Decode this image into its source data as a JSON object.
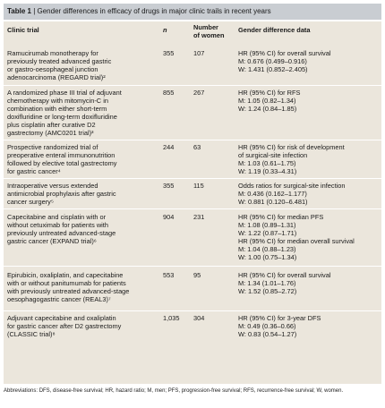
{
  "table": {
    "label": "Table 1",
    "title": " | Gender differences in efficacy of drugs in major clinic trails in recent years",
    "headers": {
      "trial": "Clinic trial",
      "n": "n",
      "women": "Number\nof women",
      "data": "Gender difference data"
    },
    "rows": [
      {
        "trial": "Ramucirumab monotherapy for\npreviously treated advanced gastric\nor gastro-oesophageal junction\nadenocarcinoma (REGARD trial)²",
        "n": "355",
        "women": "107",
        "data": "HR (95% CI) for overall survival\nM: 0.676 (0.499–0.916)\nW: 1.431 (0.852–2.405)"
      },
      {
        "trial": "A randomized phase III trial of adjuvant\nchemotherapy with mitomycin-C in\ncombination with either short-term\ndoxifluridine or long-term doxifluridine\nplus cisplatin after curative D2\ngastrectomy (AMC0201 trial)³",
        "n": "855",
        "women": "267",
        "data": "HR (95% CI) for RFS\nM: 1.05 (0.82–1.34)\nW: 1.24 (0.84–1.85)"
      },
      {
        "trial": "Prospective randomized trial of\npreoperative enteral immunonutrition\nfollowed by elective total gastrectomy\nfor gastric cancer⁴",
        "n": "244",
        "women": "63",
        "data": "HR (95% CI) for risk of development\nof surgical-site infection\nM: 1.03 (0.61–1.75)\nW: 1.19 (0.33–4.31)"
      },
      {
        "trial": "Intraoperative versus extended\nantimicrobial prophylaxis after gastric\ncancer surgery⁵",
        "n": "355",
        "women": "115",
        "data": "Odds ratios for surgical-site infection\nM: 0.436 (0.162–1.177)\nW: 0.881 (0.120–6.481)"
      },
      {
        "trial": "Capecitabine and cisplatin with or\nwithout cetuximab for patients with\npreviously untreated advanced-stage\ngastric cancer (EXPAND trial)⁶",
        "n": "904",
        "women": "231",
        "data": "HR (95% CI) for median PFS\nM: 1.08 (0.89–1.31)\nW: 1.22 (0.87–1.71)\nHR (95% CI) for median overall survival\nM: 1.04 (0.88–1.23)\nW: 1.00 (0.75–1.34)"
      },
      {
        "trial": "Epirubicin, oxaliplatin, and capecitabine\nwith or without panitumumab for patients\nwith previously untreated advanced-stage\noesophagogastric cancer (REAL3)⁷",
        "n": "553",
        "women": "95",
        "data": "HR (95% CI) for overall survival\nM: 1.34 (1.01–1.76)\nW: 1.52 (0.85–2.72)"
      },
      {
        "trial": "Adjuvant capecitabine and oxaliplatin\nfor gastric cancer after D2 gastrectomy\n(CLASSIC trial)⁸",
        "n": "1,035",
        "women": "304",
        "data": "HR (95% CI) for 3-year DFS\nM: 0.49 (0.36–0.66)\nW: 0.83 (0.54–1.27)"
      }
    ],
    "footnote": "Abbreviations: DFS, disease-free survival; HR, hazard ratio; M, men; PFS, progression-free survival; RFS, recurrence-free survival; W, women."
  }
}
